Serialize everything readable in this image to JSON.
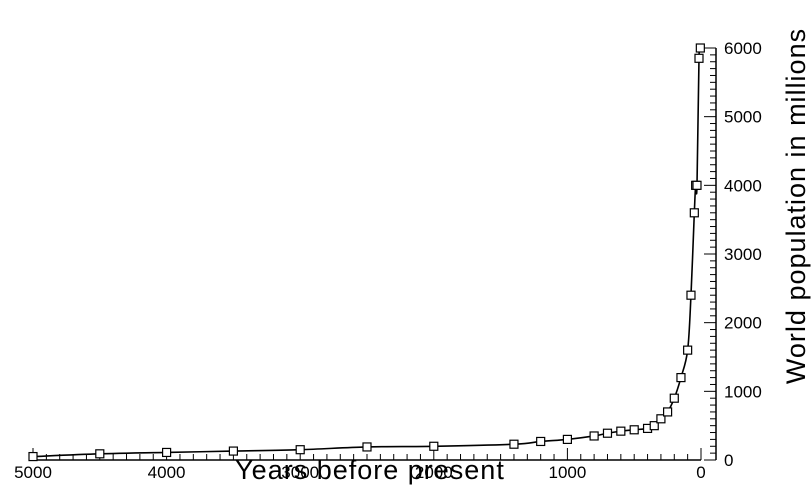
{
  "chart_data": {
    "type": "line",
    "title": "",
    "xlabel": "Years before present",
    "ylabel": "World population in millions",
    "xlim": [
      5000,
      0
    ],
    "ylim": [
      0,
      6000
    ],
    "x_reversed": true,
    "y_axis_side": "right",
    "grid": false,
    "markers": "square",
    "x_tick_labels": [
      "5000",
      "4000",
      "3000",
      "2000",
      "1000",
      "0"
    ],
    "x_tick_values": [
      5000,
      4000,
      3000,
      2000,
      1000,
      0
    ],
    "y_tick_labels": [
      "0",
      "1000",
      "2000",
      "3000",
      "4000",
      "5000",
      "6000"
    ],
    "y_tick_values": [
      0,
      1000,
      2000,
      3000,
      4000,
      5000,
      6000
    ],
    "series": [
      {
        "color": "#000000",
        "x": [
          5000,
          4500,
          4000,
          3500,
          3000,
          2500,
          2000,
          1400,
          1200,
          1000,
          800,
          700,
          600,
          500,
          400,
          350,
          300,
          250,
          200,
          150,
          100,
          75,
          50,
          40,
          30,
          15,
          5
        ],
        "y": [
          50,
          90,
          110,
          130,
          150,
          190,
          200,
          230,
          270,
          300,
          350,
          390,
          420,
          440,
          460,
          500,
          600,
          700,
          900,
          1200,
          1600,
          2400,
          3600,
          4000,
          4000,
          5850,
          6000
        ]
      }
    ]
  }
}
